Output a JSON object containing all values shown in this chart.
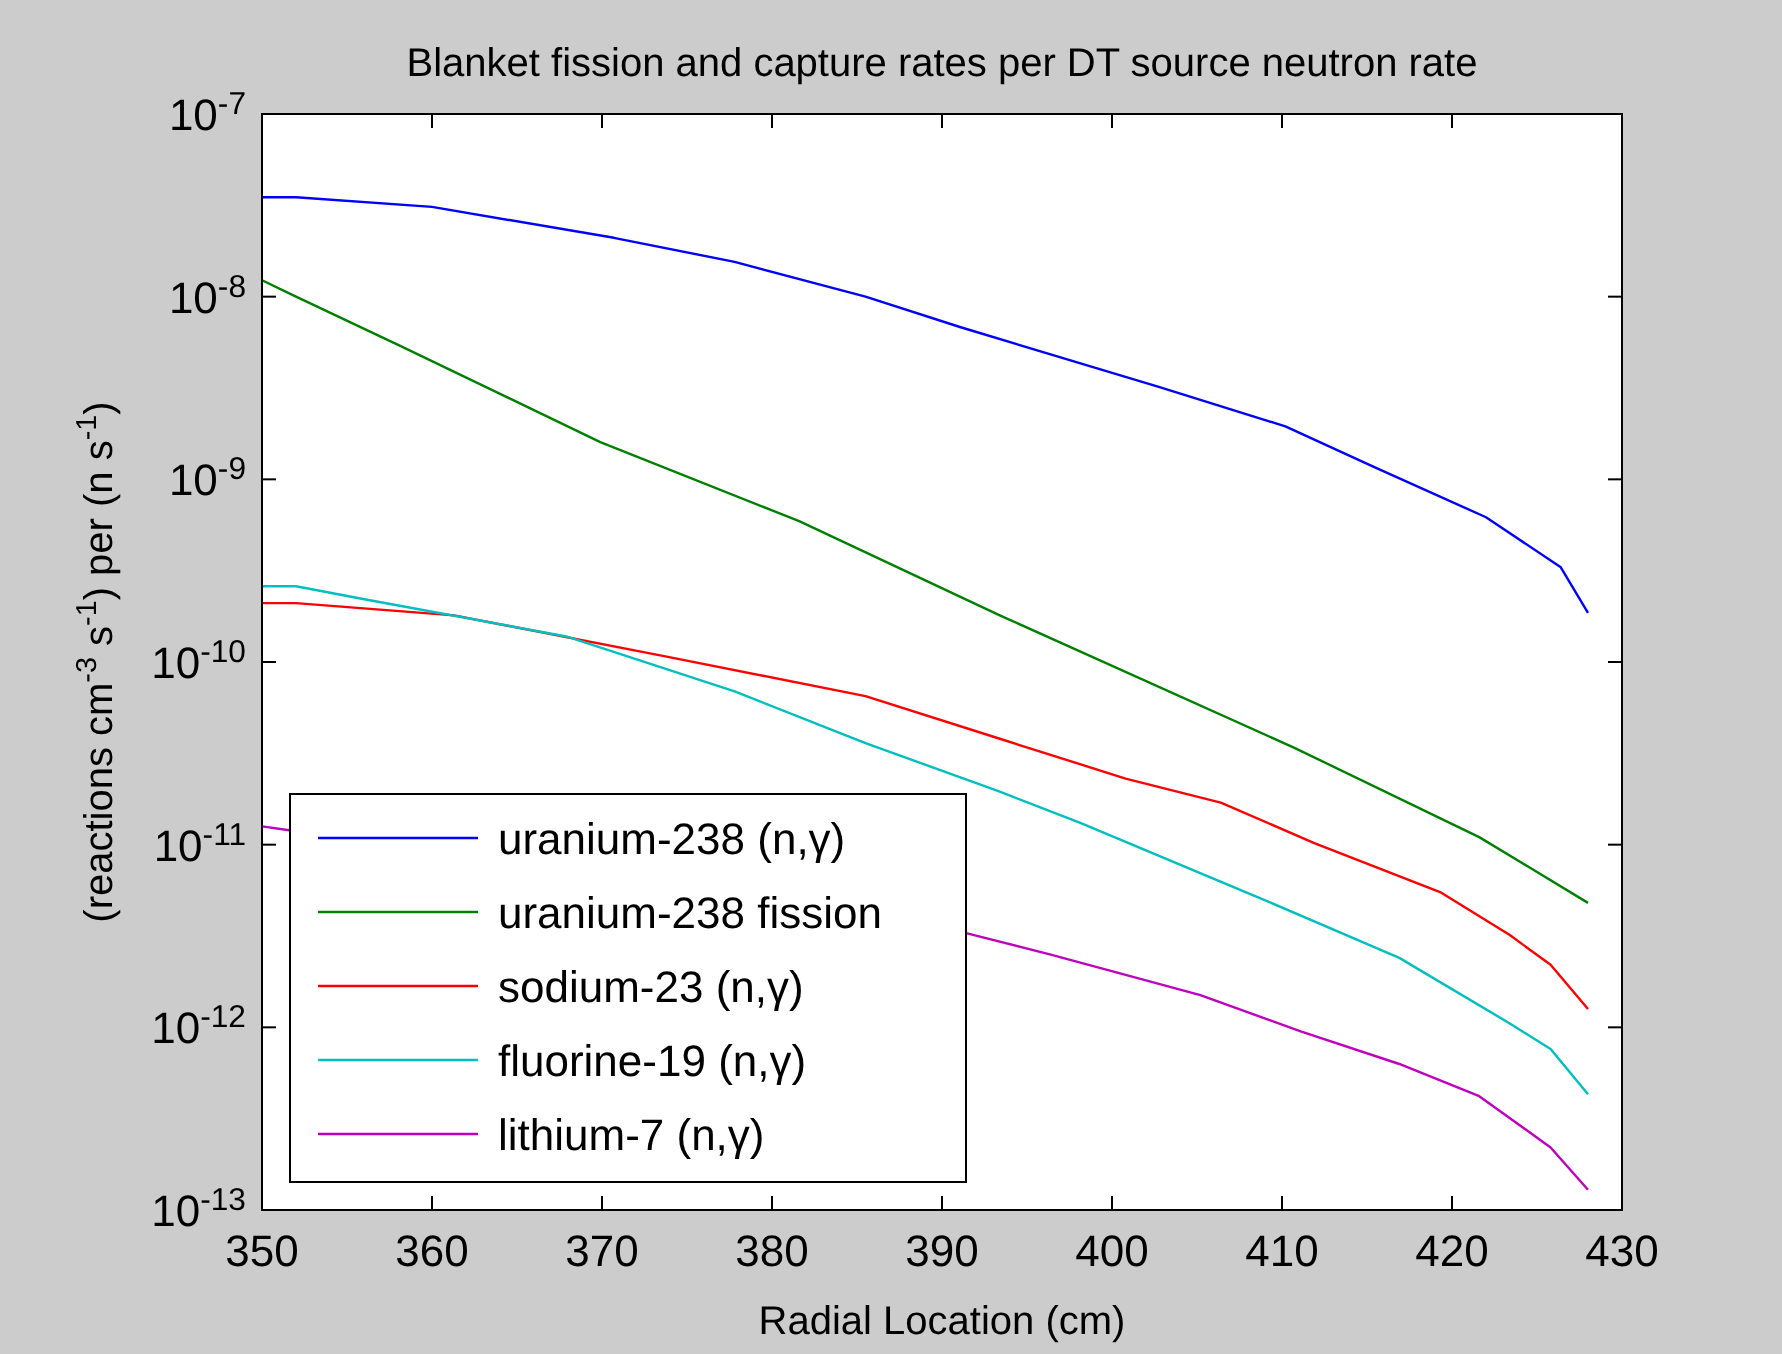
{
  "chart_data": {
    "type": "line",
    "title": "Blanket fission and capture rates per DT source neutron rate",
    "xlabel": "Radial Location (cm)",
    "ylabel": "(reactions cm$^{-3}$ s$^{-1}$) per (n s$^{-1}$)",
    "log": "y",
    "grid": false,
    "legend": "bottom left",
    "line_style": "solid",
    "marker": "none",
    "xlim": [
      350,
      430
    ],
    "xticks": [
      350,
      360,
      370,
      380,
      390,
      400,
      410,
      420,
      430
    ],
    "ylim": [
      1e-13,
      1e-07
    ],
    "yticks": [
      {
        "value": 1e-13,
        "label": "10$^{-13}$"
      },
      {
        "value": 1e-12,
        "label": "10$^{-12}$"
      },
      {
        "value": 1e-11,
        "label": "10$^{-11}$"
      },
      {
        "value": 1e-10,
        "label": "10$^{-10}$"
      },
      {
        "value": 1e-09,
        "label": "10$^{-9}$"
      },
      {
        "value": 1e-08,
        "label": "10$^{-8}$"
      },
      {
        "value": 1e-07,
        "label": "10$^{-7}$"
      }
    ],
    "series": [
      {
        "name": "uranium-238 (n,γ)",
        "color": "#0000ff",
        "x": [
          350,
          352,
          360,
          370.7,
          377.8,
          385.5,
          391.1,
          402.8,
          410.2,
          415.4,
          422,
          426.4,
          428
        ],
        "values": [
          3.5e-08,
          3.5e-08,
          3.1e-08,
          2.1e-08,
          1.55e-08,
          1e-08,
          6.8e-09,
          3.2e-09,
          1.95e-09,
          1.17e-09,
          6.2e-10,
          3.3e-10,
          1.86e-10
        ]
      },
      {
        "name": "uranium-238 fission",
        "color": "#008000",
        "x": [
          350,
          352,
          358.1,
          369.9,
          381.6,
          393.4,
          410.7,
          421.6,
          428
        ],
        "values": [
          1.23e-08,
          1e-08,
          5.4e-09,
          1.6e-09,
          5.9e-10,
          1.8e-10,
          3.4e-11,
          1.1e-11,
          4.8e-12
        ]
      },
      {
        "name": "sodium-23 (n,γ)",
        "color": "#ff0000",
        "x": [
          350,
          352,
          361.3,
          373.8,
          385.5,
          393.4,
          400.8,
          406.4,
          411.9,
          419.3,
          423.4,
          425.8,
          428
        ],
        "values": [
          2.1e-10,
          2.1e-10,
          1.8e-10,
          1.07e-10,
          6.5e-11,
          3.8e-11,
          2.3e-11,
          1.7e-11,
          1.02e-11,
          5.5e-12,
          3.2e-12,
          2.2e-12,
          1.26e-12
        ]
      },
      {
        "name": "fluorine-19 (n,γ)",
        "color": "#00bfbf",
        "x": [
          350,
          352,
          356.1,
          367.9,
          377.8,
          385.5,
          393.4,
          398.1,
          408.7,
          416.9,
          423.4,
          425.8,
          428
        ],
        "values": [
          2.6e-10,
          2.6e-10,
          2.2e-10,
          1.38e-10,
          6.9e-11,
          3.6e-11,
          1.95e-11,
          1.32e-11,
          5.1e-12,
          2.4e-12,
          1.05e-12,
          7.6e-13,
          4.3e-13
        ]
      },
      {
        "name": "lithium-7 (n,γ)",
        "color": "#bf00bf",
        "x": [
          350,
          351.6,
          370,
          391.3,
          396.4,
          405.2,
          411.1,
          416.9,
          421.6,
          425.8,
          428
        ],
        "values": [
          1.26e-11,
          1.2e-11,
          null,
          3.3e-12,
          2.5e-12,
          1.5e-12,
          9.5e-13,
          6.3e-13,
          4.2e-13,
          2.2e-13,
          1.29e-13
        ]
      }
    ]
  }
}
